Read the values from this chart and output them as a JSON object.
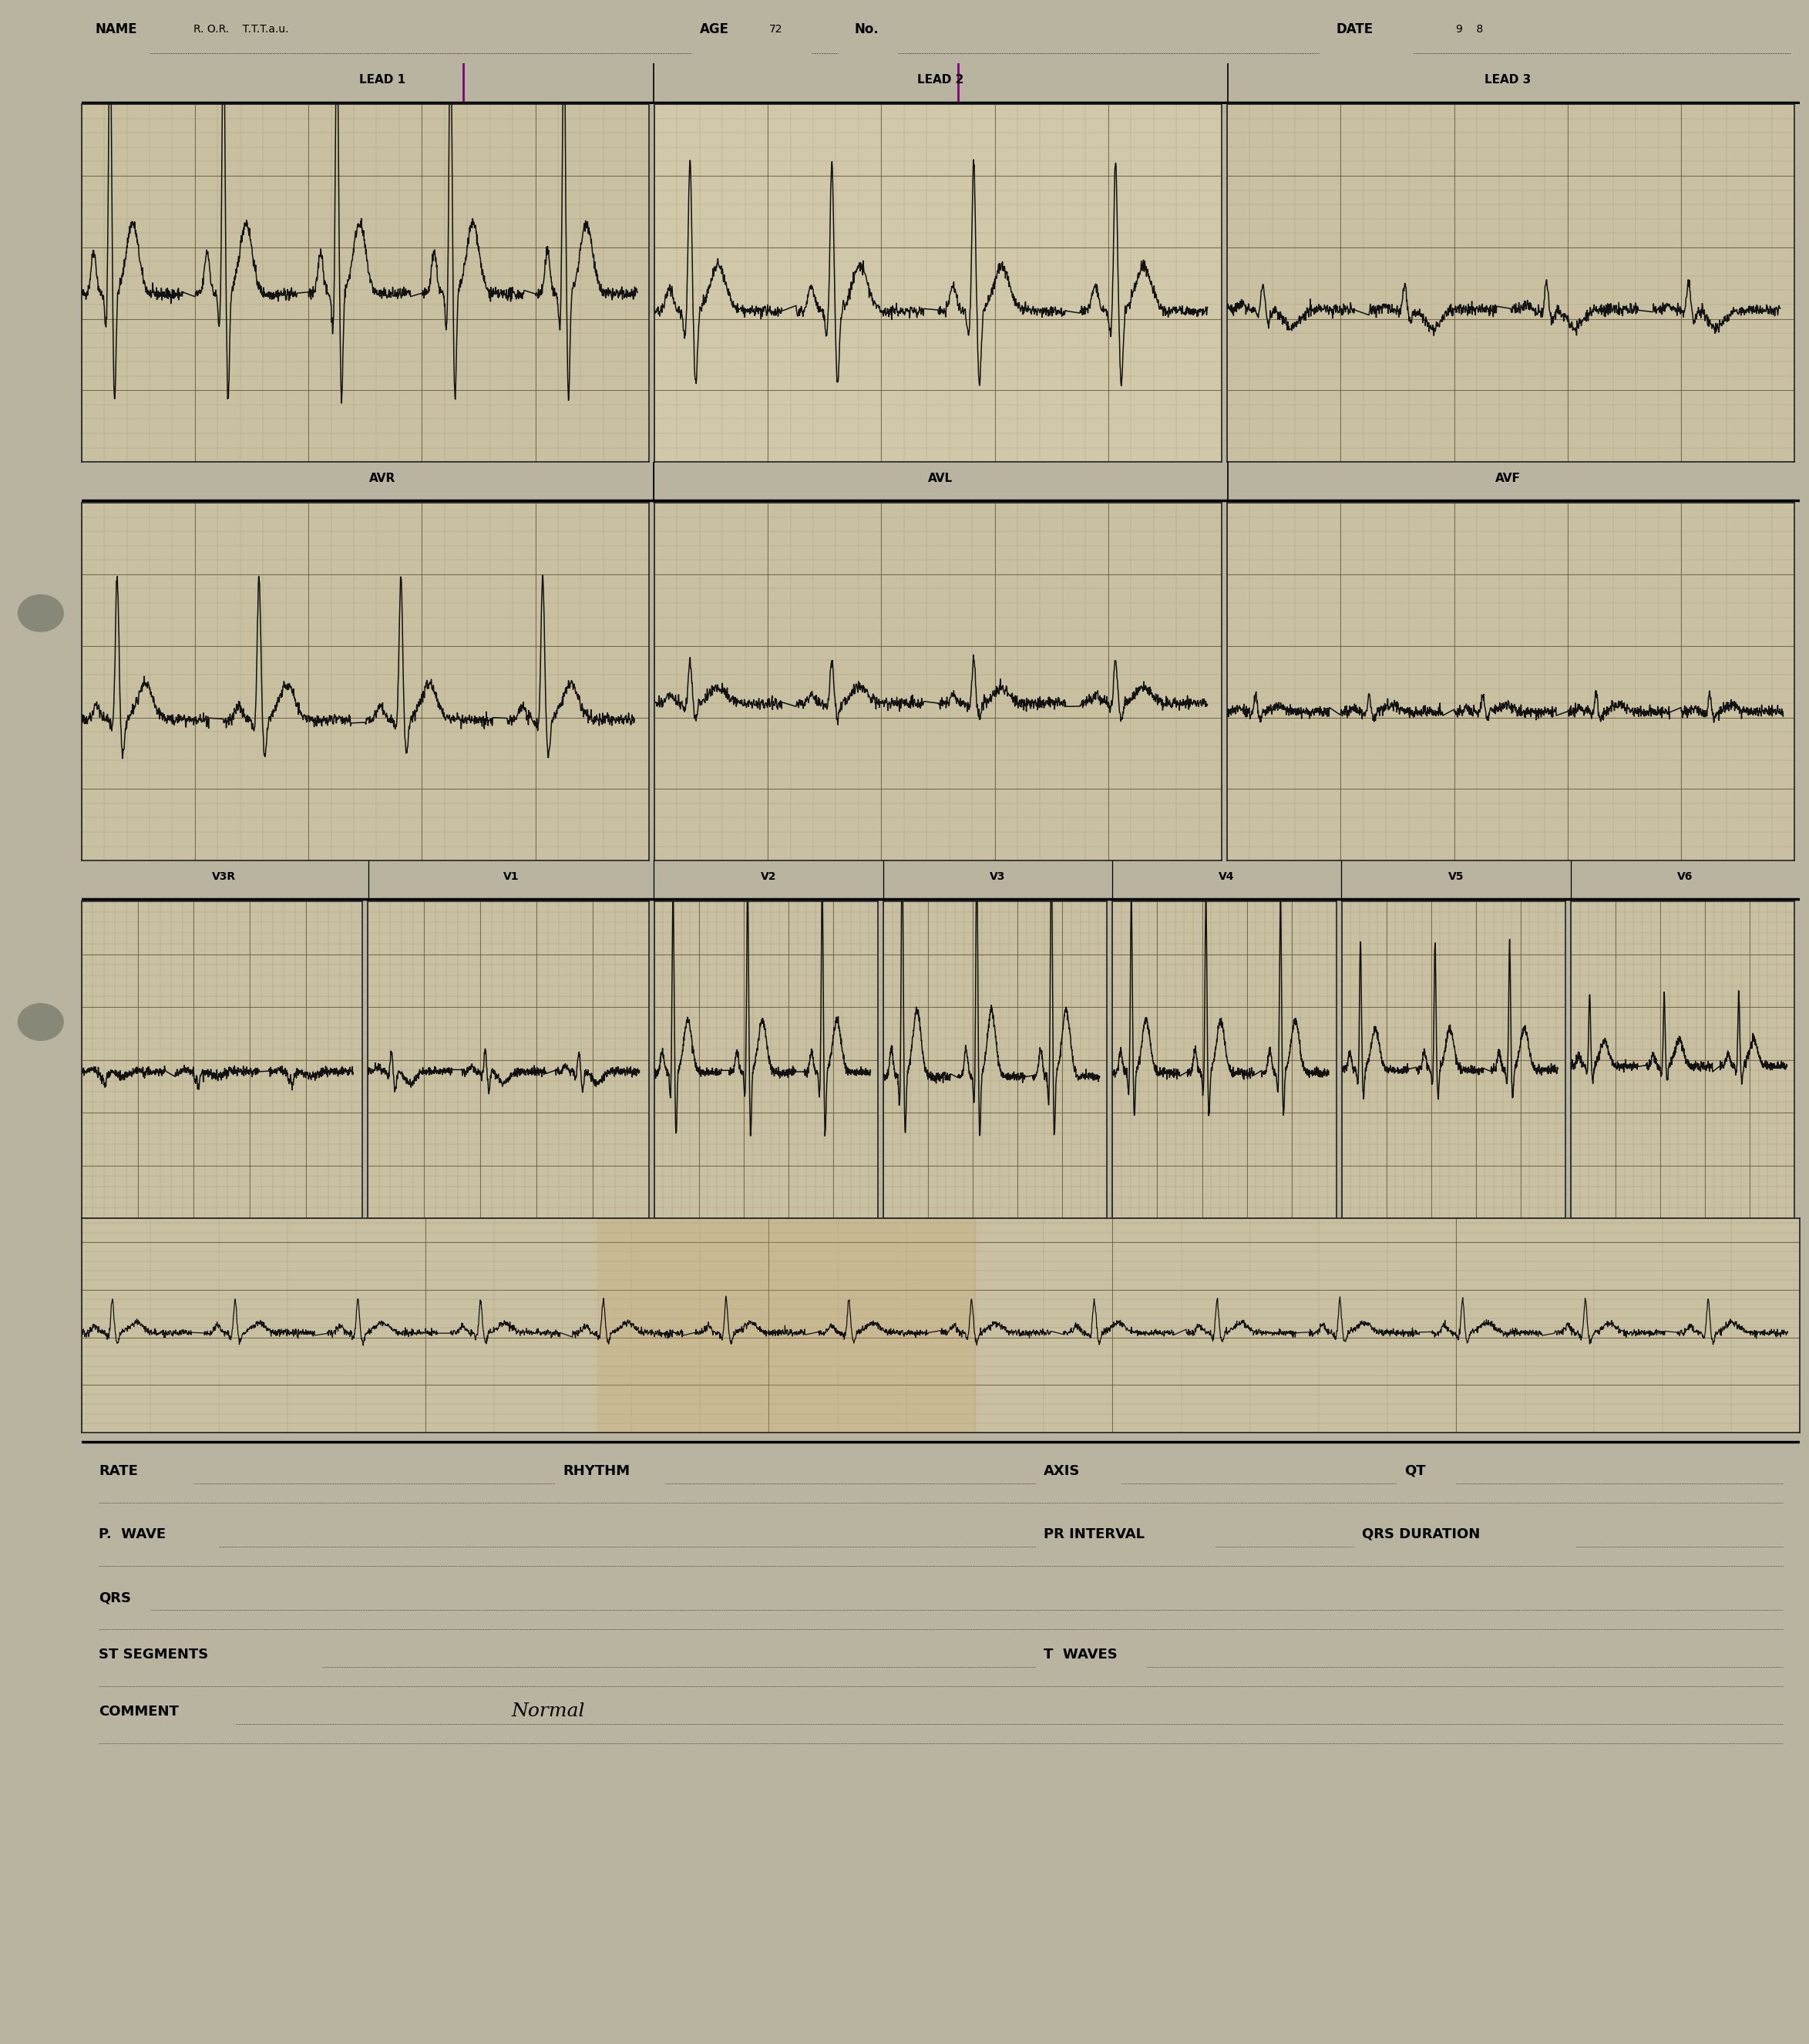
{
  "bg_color": "#b8b4a0",
  "grid_minor_color": "#8a7a60",
  "grid_major_color": "#6a5a40",
  "ecg_color": "#111111",
  "paper_color": "#c8c0a0",
  "paper_color2": "#d0c8a8",
  "dark_paper": "#b0a888",
  "header_bg": "#d8d0b0",
  "report_bg": "#e8e4d8",
  "separator_color": "#222222",
  "lead1_label": "LEAD 1",
  "lead2_label": "LEAD 2",
  "lead3_label": "LEAD 3",
  "avr_label": "AVR",
  "avl_label": "AVL",
  "avf_label": "AVF",
  "v3r_label": "V3R",
  "v1_label": "V1",
  "v2_label": "V2",
  "v3_label": "V3",
  "v4_label": "V4",
  "v5_label": "V5",
  "v6_label": "V6",
  "rate_label": "RATE",
  "rhythm_label": "RHYTHM",
  "axis_label": "AXIS",
  "qt_label": "QT",
  "p_wave_label": "P.  WAVE",
  "pr_interval_label": "PR INTERVAL",
  "qrs_duration_label": "QRS DURATION",
  "qrs_label": "QRS",
  "st_segments_label": "ST SEGMENTS",
  "t_waves_label": "T  WAVES",
  "comment_label": "COMMENT",
  "normal_text": "Normal"
}
